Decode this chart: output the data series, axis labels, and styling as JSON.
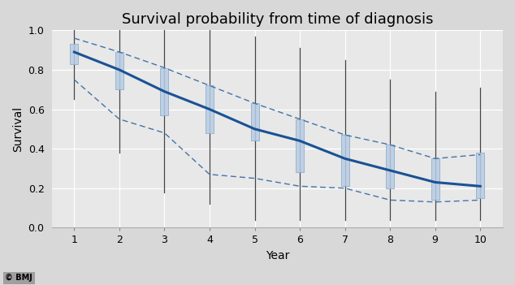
{
  "title": "Survival probability from time of diagnosis",
  "xlabel": "Year",
  "ylabel": "Survival",
  "years": [
    1,
    2,
    3,
    4,
    5,
    6,
    7,
    8,
    9,
    10
  ],
  "survival": [
    0.89,
    0.8,
    0.69,
    0.6,
    0.5,
    0.44,
    0.35,
    0.29,
    0.23,
    0.21
  ],
  "ci_upper": [
    0.96,
    0.89,
    0.81,
    0.72,
    0.63,
    0.55,
    0.47,
    0.42,
    0.35,
    0.37
  ],
  "ci_lower": [
    0.75,
    0.55,
    0.48,
    0.27,
    0.25,
    0.21,
    0.2,
    0.14,
    0.13,
    0.14
  ],
  "whisker_top": [
    1.0,
    1.0,
    1.0,
    1.0,
    0.97,
    0.91,
    0.85,
    0.75,
    0.69,
    0.71
  ],
  "whisker_bottom": [
    0.65,
    0.38,
    0.18,
    0.12,
    0.04,
    0.04,
    0.04,
    0.04,
    0.04,
    0.04
  ],
  "bar_top": [
    0.93,
    0.89,
    0.81,
    0.72,
    0.63,
    0.55,
    0.47,
    0.42,
    0.35,
    0.38
  ],
  "bar_bottom": [
    0.83,
    0.7,
    0.57,
    0.48,
    0.44,
    0.28,
    0.21,
    0.2,
    0.14,
    0.15
  ],
  "line_color": "#1a5294",
  "ci_color": "#4472a8",
  "bar_facecolor": "#b8cce4",
  "bar_edgecolor": "#8aaece",
  "whisker_color": "#444444",
  "plot_bg_color": "#e8e8e8",
  "fig_bg_color": "#d8d8d8",
  "grid_color": "#ffffff",
  "ylim": [
    0,
    1.0
  ],
  "xlim": [
    0.5,
    10.5
  ],
  "yticks": [
    0,
    0.2,
    0.4,
    0.6,
    0.8,
    1.0
  ],
  "xticks": [
    1,
    2,
    3,
    4,
    5,
    6,
    7,
    8,
    9,
    10
  ],
  "title_fontsize": 13,
  "axis_label_fontsize": 10,
  "tick_fontsize": 9,
  "bar_width": 0.18,
  "watermark": "© BMJ"
}
